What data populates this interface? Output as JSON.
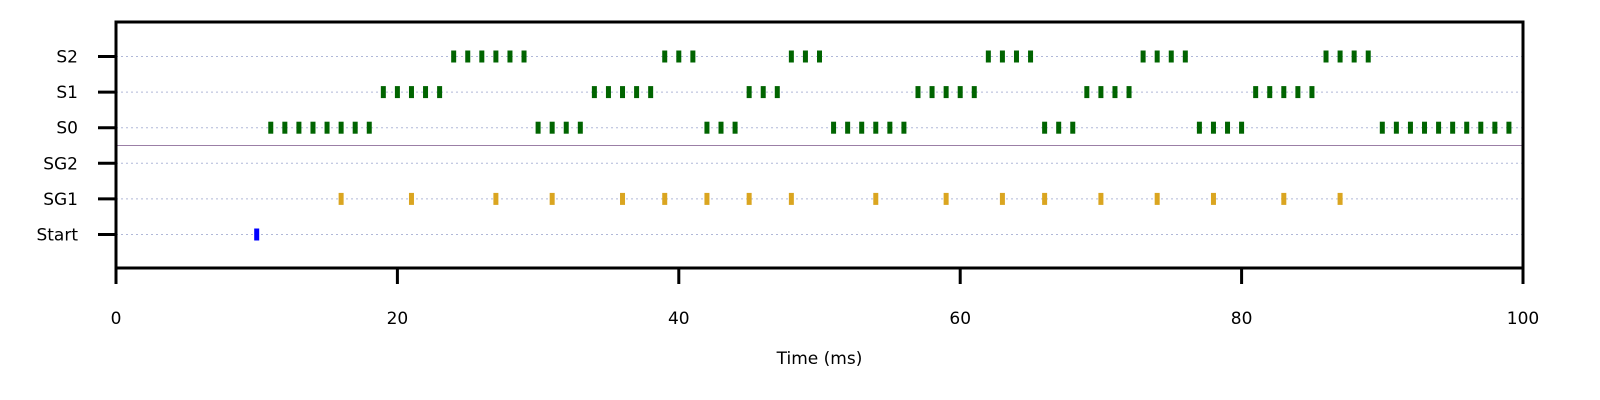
{
  "chart_data": {
    "type": "scatter",
    "xlabel": "Time (ms)",
    "ylabel": "",
    "xlim": [
      0,
      100
    ],
    "xticks": [
      0,
      20,
      40,
      60,
      80,
      100
    ],
    "rows": [
      "Start",
      "SG1",
      "SG2",
      "S0",
      "S1",
      "S2"
    ],
    "grid": "horizontal dotted",
    "separator_between": [
      "SG2",
      "S0"
    ],
    "series": [
      {
        "row": "S2",
        "color": "#006400",
        "times": [
          24,
          25,
          26,
          27,
          28,
          29,
          39,
          40,
          41,
          48,
          49,
          50,
          62,
          63,
          64,
          65,
          73,
          74,
          75,
          76,
          86,
          87,
          88,
          89
        ]
      },
      {
        "row": "S1",
        "color": "#006400",
        "times": [
          19,
          20,
          21,
          22,
          23,
          34,
          35,
          36,
          37,
          38,
          45,
          46,
          47,
          57,
          58,
          59,
          60,
          61,
          69,
          70,
          71,
          72,
          81,
          82,
          83,
          84,
          85
        ]
      },
      {
        "row": "S0",
        "color": "#006400",
        "times": [
          11,
          12,
          13,
          14,
          15,
          16,
          17,
          18,
          30,
          31,
          32,
          33,
          42,
          43,
          44,
          51,
          52,
          53,
          54,
          55,
          56,
          66,
          67,
          68,
          77,
          78,
          79,
          80,
          90,
          91,
          92,
          93,
          94,
          95,
          96,
          97,
          98,
          99
        ]
      },
      {
        "row": "SG2",
        "color": "#DAA520",
        "times": []
      },
      {
        "row": "SG1",
        "color": "#DAA520",
        "times": [
          16,
          21,
          27,
          31,
          36,
          39,
          42,
          45,
          48,
          54,
          59,
          63,
          66,
          70,
          74,
          78,
          83,
          87
        ]
      },
      {
        "row": "Start",
        "color": "#0000FF",
        "times": [
          10
        ]
      }
    ]
  }
}
